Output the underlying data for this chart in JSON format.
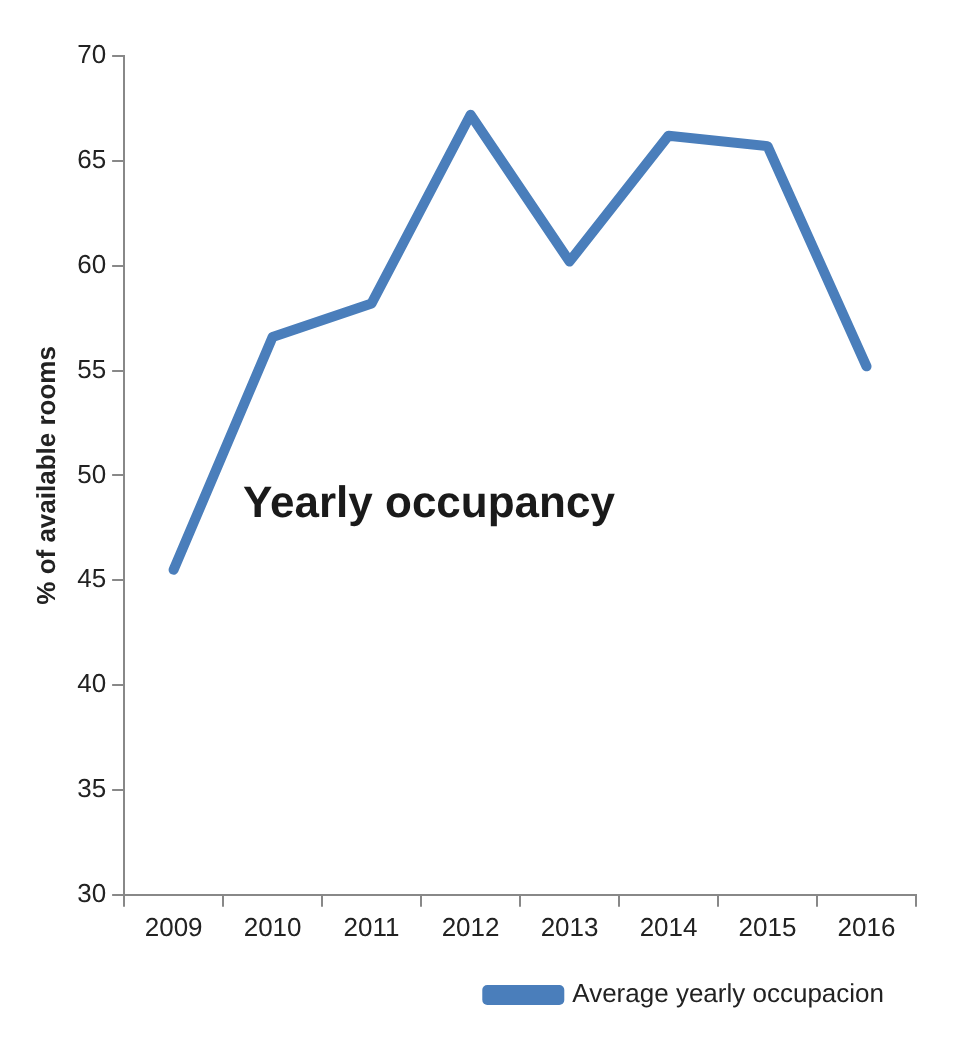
{
  "chart_data": {
    "type": "line",
    "title": "Yearly occupancy",
    "ylabel": "% of available rooms",
    "categories": [
      "2009",
      "2010",
      "2011",
      "2012",
      "2013",
      "2014",
      "2015",
      "2016"
    ],
    "series": [
      {
        "name": "Average yearly occupacion",
        "color": "#4a7ebb",
        "values": [
          45.5,
          56.6,
          58.2,
          67.2,
          60.2,
          66.2,
          65.7,
          55.2
        ]
      }
    ],
    "ylim": [
      30,
      70
    ],
    "yticks": [
      30,
      35,
      40,
      45,
      50,
      55,
      60,
      65,
      70
    ],
    "grid": false,
    "legend": "bottom right",
    "marker": "none",
    "line_style": "solid"
  }
}
